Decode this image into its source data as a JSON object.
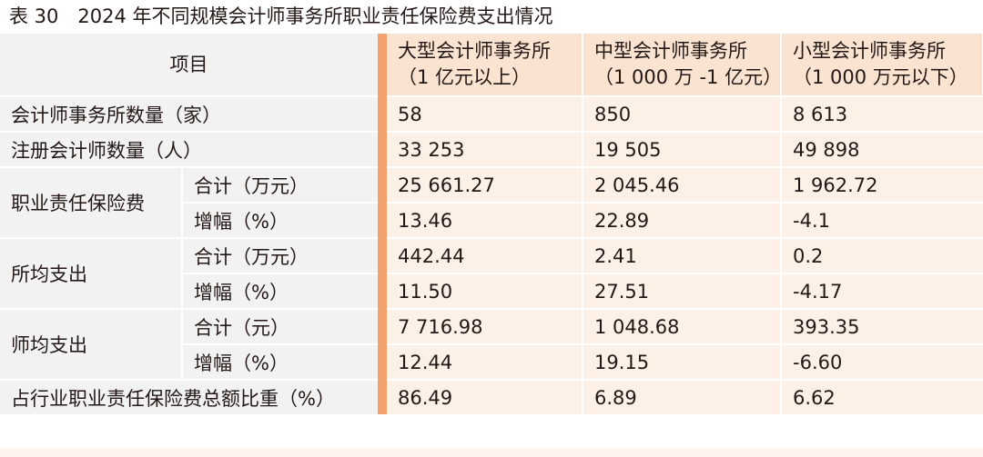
{
  "title": "表 30　2024 年不同规模会计师事务所职业责任保险费支出情况",
  "header": {
    "item": "项目",
    "columns": [
      {
        "line1": "大型会计师事务所",
        "line2": "（1 亿元以上）"
      },
      {
        "line1": "中型会计师事务所",
        "line2": "（1 000 万 -1 亿元）"
      },
      {
        "line1": "小型会计师事务所",
        "line2": "（1 000 万元以下）"
      }
    ]
  },
  "rows": {
    "firm_count": {
      "label": "会计师事务所数量（家）",
      "values": [
        "58",
        "850",
        "8 613"
      ]
    },
    "cpa_count": {
      "label": "注册会计师数量（人）",
      "values": [
        "33 253",
        "19 505",
        "49 898"
      ]
    },
    "insurance": {
      "label": "职业责任保险费",
      "total": {
        "label": "合计（万元）",
        "values": [
          "25 661.27",
          "2 045.46",
          "1 962.72"
        ]
      },
      "growth": {
        "label": "增幅（%）",
        "values": [
          "13.46",
          "22.89",
          "-4.1"
        ]
      }
    },
    "per_firm": {
      "label": "所均支出",
      "total": {
        "label": "合计（万元）",
        "values": [
          "442.44",
          "2.41",
          "0.2"
        ]
      },
      "growth": {
        "label": "增幅（%）",
        "values": [
          "11.50",
          "27.51",
          "-4.17"
        ]
      }
    },
    "per_cpa": {
      "label": "师均支出",
      "total": {
        "label": "合计（元）",
        "values": [
          "7 716.98",
          "1 048.68",
          "393.35"
        ]
      },
      "growth": {
        "label": "增幅（%）",
        "values": [
          "12.44",
          "19.15",
          "-6.60"
        ]
      }
    },
    "share": {
      "label": "占行业职业责任保险费总额比重（%）",
      "values": [
        "86.49",
        "6.89",
        "6.62"
      ]
    }
  }
}
